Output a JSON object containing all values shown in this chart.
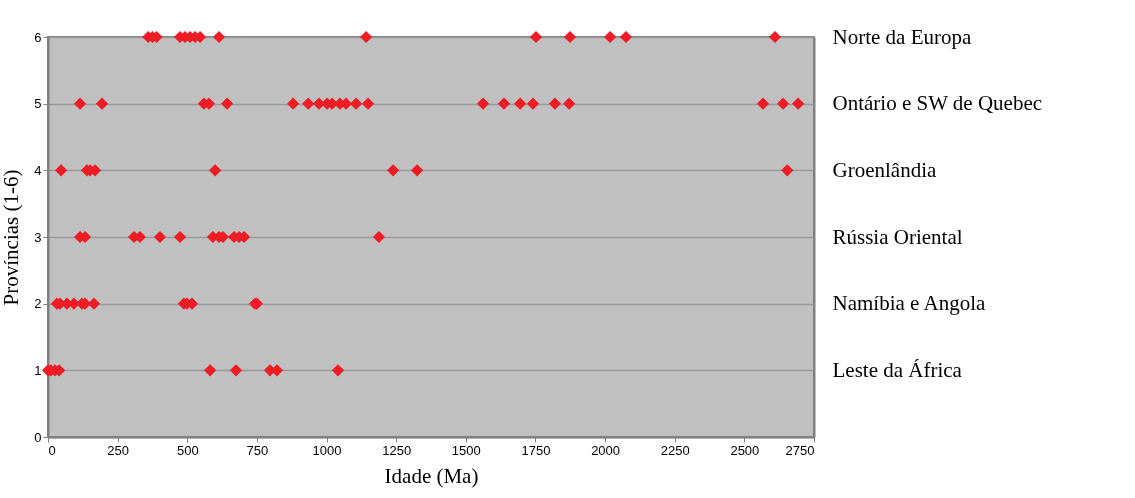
{
  "chart_data": {
    "type": "scatter",
    "xlabel": "Idade (Ma)",
    "ylabel": "Províncias (1-6)",
    "xlim": [
      0,
      2750
    ],
    "xticks": [
      0,
      250,
      500,
      750,
      1000,
      1250,
      1500,
      1750,
      2000,
      2250,
      2500,
      2750
    ],
    "ylim": [
      0,
      6
    ],
    "yticks": [
      0,
      1,
      2,
      3,
      4,
      5,
      6
    ],
    "y2_categories": [
      "Norte da Europa",
      "Ontário e SW de Quebec",
      "Groenlândia",
      "Rússia Oriental",
      "Namíbia e Angola",
      "Leste da África",
      null
    ],
    "grid": "y",
    "marker": "diamond",
    "series": [
      {
        "color": "#ee1c25",
        "x": [
          360,
          375,
          390,
          474,
          492,
          510,
          528,
          546,
          614,
          1142,
          1752,
          1874,
          2018,
          2075,
          2610,
          115,
          194,
          560,
          578,
          643,
          880,
          934,
          973,
          1002,
          1020,
          1048,
          1070,
          1106,
          1149,
          1562,
          1637,
          1695,
          1741,
          1820,
          1871,
          2567,
          2639,
          2693,
          47,
          140,
          151,
          169,
          600,
          1239,
          1325,
          2654,
          115,
          133,
          309,
          330,
          402,
          474,
          592,
          614,
          628,
          668,
          686,
          704,
          1188,
          32,
          43,
          68,
          93,
          122,
          133,
          165,
          488,
          499,
          517,
          743,
          750,
          0,
          10,
          25,
          40,
          582,
          675,
          797,
          822,
          1041
        ],
        "values": [
          6,
          6,
          6,
          6,
          6,
          6,
          6,
          6,
          6,
          6,
          6,
          6,
          6,
          6,
          6,
          5,
          5,
          5,
          5,
          5,
          5,
          5,
          5,
          5,
          5,
          5,
          5,
          5,
          5,
          5,
          5,
          5,
          5,
          5,
          5,
          5,
          5,
          5,
          4,
          4,
          4,
          4,
          4,
          4,
          4,
          4,
          3,
          3,
          3,
          3,
          3,
          3,
          3,
          3,
          3,
          3,
          3,
          3,
          3,
          2,
          2,
          2,
          2,
          2,
          2,
          2,
          2,
          2,
          2,
          2,
          2,
          1,
          1,
          1,
          1,
          1,
          1,
          1,
          1,
          1
        ]
      }
    ]
  }
}
